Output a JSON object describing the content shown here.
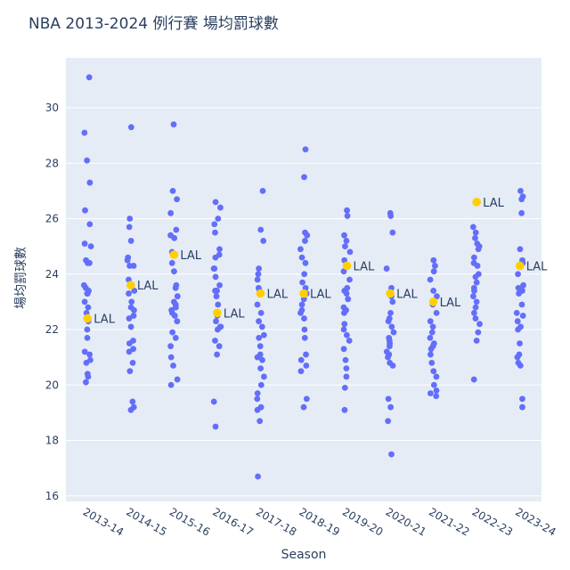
{
  "chart_data": {
    "type": "scatter",
    "title": "NBA 2013-2024 例行賽 場均罰球數",
    "xlabel": "Season",
    "ylabel": "場均罰球數",
    "ylim": [
      15.8,
      31.8
    ],
    "yticks": [
      16,
      18,
      20,
      22,
      24,
      26,
      28,
      30
    ],
    "grid": true,
    "colors": {
      "teams": "#636efa",
      "highlight": "#ffd000",
      "plot_bg": "#e5ecf6"
    },
    "categories": [
      "2013-14",
      "2014-15",
      "2015-16",
      "2016-17",
      "2017-18",
      "2018-19",
      "2019-20",
      "2020-21",
      "2021-22",
      "2022-23",
      "2023-24"
    ],
    "highlight_label": "LAL",
    "highlight": [
      22.4,
      23.6,
      24.7,
      22.6,
      23.3,
      23.3,
      24.3,
      23.3,
      23.0,
      26.6,
      24.3
    ],
    "teams": [
      [
        31.1,
        29.1,
        28.1,
        27.3,
        26.3,
        25.8,
        25.1,
        25.0,
        24.5,
        24.4,
        23.6,
        23.5,
        23.4,
        23.3,
        23.0,
        22.6,
        22.3,
        22.0,
        21.7,
        21.2,
        21.1,
        20.9,
        20.8,
        20.4,
        20.3,
        20.1,
        22.8,
        24.4,
        23.3
      ],
      [
        29.3,
        26.0,
        25.7,
        25.2,
        24.6,
        24.5,
        24.3,
        23.8,
        23.6,
        23.4,
        23.3,
        22.8,
        22.7,
        22.5,
        22.4,
        22.1,
        21.6,
        21.5,
        21.3,
        21.2,
        20.8,
        20.5,
        19.4,
        19.2,
        19.1,
        23.0,
        24.3
      ],
      [
        29.4,
        27.0,
        26.7,
        26.2,
        25.6,
        25.4,
        25.3,
        24.8,
        24.1,
        23.6,
        23.5,
        23.2,
        23.0,
        22.9,
        22.7,
        22.5,
        22.3,
        21.9,
        21.7,
        21.4,
        21.0,
        20.7,
        20.2,
        20.0,
        22.6,
        24.4,
        22.8
      ],
      [
        26.6,
        26.4,
        26.0,
        25.8,
        25.5,
        24.9,
        24.7,
        24.2,
        24.2,
        23.9,
        23.6,
        23.4,
        23.2,
        22.9,
        22.5,
        22.3,
        22.1,
        22.0,
        21.6,
        21.4,
        21.1,
        19.4,
        18.5,
        23.4,
        24.6,
        22.1
      ],
      [
        27.0,
        25.6,
        25.2,
        24.2,
        24.0,
        23.8,
        23.4,
        22.9,
        22.6,
        22.3,
        21.8,
        21.7,
        21.4,
        21.1,
        20.9,
        20.6,
        20.3,
        20.0,
        19.7,
        19.5,
        19.2,
        19.1,
        18.7,
        16.7,
        23.5,
        21.0,
        22.1
      ],
      [
        28.5,
        27.5,
        25.5,
        25.4,
        25.2,
        24.6,
        24.4,
        24.0,
        23.7,
        23.5,
        23.1,
        22.9,
        22.7,
        22.4,
        22.0,
        21.7,
        21.1,
        20.9,
        20.7,
        20.5,
        19.5,
        19.2,
        23.3,
        24.9,
        22.6
      ],
      [
        26.3,
        26.1,
        25.4,
        25.2,
        24.8,
        24.5,
        24.1,
        23.8,
        23.5,
        23.3,
        23.1,
        22.8,
        22.6,
        22.2,
        22.0,
        21.8,
        21.6,
        21.3,
        20.9,
        20.6,
        20.3,
        19.9,
        19.1,
        23.4,
        25.0,
        22.7
      ],
      [
        26.2,
        26.1,
        25.5,
        24.2,
        23.5,
        23.2,
        23.0,
        22.6,
        22.4,
        22.1,
        21.9,
        21.6,
        21.5,
        21.4,
        21.2,
        21.1,
        21.0,
        20.8,
        20.7,
        19.5,
        19.2,
        18.7,
        17.5,
        22.3,
        21.7
      ],
      [
        24.5,
        24.1,
        23.8,
        23.4,
        23.2,
        22.9,
        22.6,
        22.3,
        21.9,
        21.7,
        21.5,
        21.3,
        21.1,
        20.8,
        20.5,
        20.3,
        20.0,
        19.8,
        19.7,
        19.6,
        24.3,
        22.1,
        21.4
      ],
      [
        25.7,
        25.5,
        25.3,
        25.1,
        25.0,
        24.9,
        24.6,
        24.3,
        24.0,
        23.9,
        23.7,
        23.5,
        23.4,
        23.0,
        22.6,
        22.4,
        22.2,
        21.9,
        21.6,
        20.2,
        22.8,
        24.4,
        23.2
      ],
      [
        27.0,
        26.8,
        26.7,
        26.2,
        24.9,
        24.5,
        24.4,
        24.0,
        23.5,
        23.4,
        23.3,
        22.9,
        22.6,
        22.5,
        22.1,
        22.0,
        21.5,
        21.1,
        21.0,
        20.8,
        20.7,
        19.5,
        19.2,
        23.6,
        22.3
      ]
    ]
  }
}
